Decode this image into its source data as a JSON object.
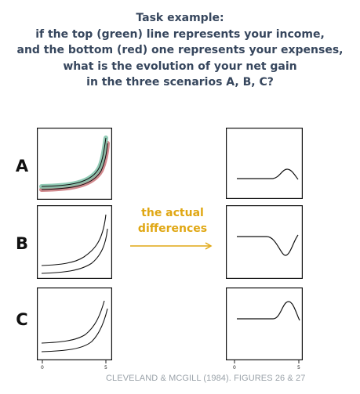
{
  "title": {
    "lines": [
      "Task example:",
      "if the top (green) line represents your income,",
      "and the bottom (red) one represents your expenses,",
      "what is the evolution of your net gain",
      "in the three scenarios A, B, C?"
    ]
  },
  "rows": [
    {
      "label": "A"
    },
    {
      "label": "B"
    },
    {
      "label": "C"
    }
  ],
  "middle_text": {
    "line1": "the actual",
    "line2": "differences"
  },
  "axis_ticks": {
    "start": "0",
    "end": "5"
  },
  "credit": "CLEVELAND & MCGILL (1984). FIGURES 26 & 27",
  "colors": {
    "title": "#36465d",
    "accent": "#e0a713",
    "income_line": "#7fc2a9",
    "expense_line": "#c9767a",
    "credit": "#9aa2a9"
  }
}
